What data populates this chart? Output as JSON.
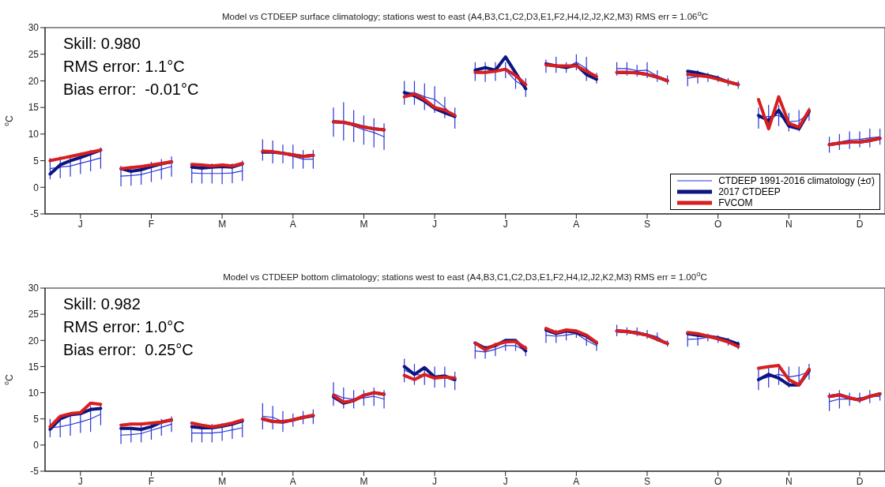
{
  "chart_data": [
    {
      "type": "line",
      "title": "Model vs CTDEEP surface climatology; stations west to east (A4,B3,C1,C2,D3,E1,F2,H4,I2,J2,K2,M3) RMS err = 1.06$^{o}$C",
      "ylabel": "$^{o}$C",
      "annotations": [
        "Skill: 0.980",
        "RMS error: 1.1°C",
        "Bias error:  -0.01°C"
      ],
      "ylim": [
        -5,
        30
      ],
      "yticks": [
        -5,
        0,
        5,
        10,
        15,
        20,
        25,
        30
      ],
      "marker": "none",
      "legend": "bottom right",
      "categories": [
        null,
        null,
        null,
        "J",
        null,
        null,
        null,
        null,
        null,
        null,
        "F",
        null,
        null,
        null,
        null,
        null,
        null,
        "M",
        null,
        null,
        null,
        null,
        null,
        null,
        "A",
        null,
        null,
        null,
        null,
        null,
        null,
        "M",
        null,
        null,
        null,
        null,
        null,
        null,
        "J",
        null,
        null,
        null,
        null,
        null,
        null,
        "J",
        null,
        null,
        null,
        null,
        null,
        null,
        "A",
        null,
        null,
        null,
        null,
        null,
        null,
        "S",
        null,
        null,
        null,
        null,
        null,
        null,
        "O",
        null,
        null,
        null,
        null,
        null,
        null,
        "N",
        null,
        null,
        null,
        null,
        null,
        null,
        "D",
        null,
        null
      ],
      "series": [
        {
          "name": "CTDEEP 1991-2016 climatology (±σ)",
          "color": "#2a35d6",
          "values": [
            3.5,
            3.8,
            4.0,
            4.5,
            5.0,
            5.5,
            null,
            2.1,
            2.2,
            2.4,
            2.9,
            3.4,
            3.9,
            null,
            2.7,
            2.6,
            2.6,
            2.6,
            2.7,
            3.1,
            null,
            7.0,
            6.7,
            6.3,
            5.8,
            5.3,
            5.3,
            null,
            12.3,
            12.4,
            11.5,
            10.8,
            10.3,
            9.5,
            null,
            17.8,
            17.8,
            17.0,
            16.5,
            15.0,
            13.0,
            null,
            21.8,
            21.7,
            21.8,
            22.0,
            20.0,
            18.8,
            null,
            22.8,
            23.0,
            22.5,
            23.5,
            22.3,
            20.5,
            null,
            22.3,
            22.3,
            21.9,
            22.0,
            20.9,
            20.2,
            null,
            20.5,
            20.8,
            20.7,
            20.4,
            19.8,
            19.3,
            null,
            13.0,
            13.3,
            13.5,
            12.3,
            12.5,
            13.8,
            null,
            8.0,
            8.5,
            8.9,
            9.0,
            9.3,
            9.5
          ],
          "errors": [
            [
              1.5,
              5.5
            ],
            [
              1.7,
              5.8
            ],
            [
              2.0,
              6.0
            ],
            [
              2.5,
              6.5
            ],
            [
              3.0,
              7.0
            ],
            [
              3.5,
              7.5
            ],
            null,
            [
              0.2,
              4.0
            ],
            [
              0.3,
              4.0
            ],
            [
              0.5,
              4.2
            ],
            [
              1.0,
              4.8
            ],
            [
              1.5,
              5.3
            ],
            [
              2.0,
              5.8
            ],
            null,
            [
              0.8,
              4.5
            ],
            [
              0.7,
              4.5
            ],
            [
              0.7,
              4.5
            ],
            [
              0.6,
              4.5
            ],
            [
              0.8,
              4.5
            ],
            [
              1.2,
              5.0
            ],
            null,
            [
              5.0,
              9.0
            ],
            [
              4.5,
              8.8
            ],
            [
              4.5,
              8.0
            ],
            [
              3.5,
              8.0
            ],
            [
              3.5,
              7.0
            ],
            [
              3.5,
              7.0
            ],
            null,
            [
              9.5,
              15.0
            ],
            [
              8.8,
              16.0
            ],
            [
              8.5,
              14.5
            ],
            [
              8.0,
              13.5
            ],
            [
              7.5,
              13.0
            ],
            [
              7.0,
              12.0
            ],
            null,
            [
              15.5,
              20.0
            ],
            [
              15.5,
              20.0
            ],
            [
              14.5,
              19.5
            ],
            [
              14.0,
              19.0
            ],
            [
              13.0,
              17.0
            ],
            [
              11.0,
              15.0
            ],
            null,
            [
              20.0,
              23.5
            ],
            [
              19.8,
              23.5
            ],
            [
              20.0,
              23.5
            ],
            [
              20.5,
              23.5
            ],
            [
              18.5,
              21.5
            ],
            [
              17.0,
              20.5
            ],
            null,
            [
              21.5,
              24.0
            ],
            [
              21.5,
              24.5
            ],
            [
              21.5,
              23.5
            ],
            [
              22.0,
              25.0
            ],
            [
              20.0,
              24.5
            ],
            [
              19.5,
              21.5
            ],
            null,
            [
              21.0,
              23.5
            ],
            [
              21.0,
              23.5
            ],
            [
              20.8,
              23.0
            ],
            [
              20.5,
              23.5
            ],
            [
              19.8,
              22.0
            ],
            [
              19.3,
              21.0
            ],
            null,
            [
              19.0,
              22.0
            ],
            [
              19.5,
              22.0
            ],
            [
              19.8,
              21.5
            ],
            [
              19.8,
              21.0
            ],
            [
              19.0,
              20.5
            ],
            [
              18.5,
              20.0
            ],
            null,
            [
              11.0,
              15.0
            ],
            [
              11.0,
              15.5
            ],
            [
              11.5,
              15.5
            ],
            [
              10.5,
              14.0
            ],
            [
              10.5,
              14.5
            ],
            [
              12.5,
              15.0
            ],
            null,
            [
              6.5,
              9.5
            ],
            [
              7.0,
              10.0
            ],
            [
              7.2,
              10.5
            ],
            [
              7.5,
              10.5
            ],
            [
              7.5,
              11.0
            ],
            [
              8.0,
              11.0
            ]
          ]
        },
        {
          "name": "2017 CTDEEP",
          "color": "#0c1580",
          "values": [
            2.5,
            4.2,
            5.0,
            5.6,
            6.3,
            7.0,
            null,
            3.5,
            3.0,
            3.3,
            3.9,
            4.4,
            4.8,
            null,
            3.8,
            3.6,
            3.8,
            3.9,
            3.8,
            4.4,
            null,
            6.6,
            6.6,
            6.4,
            6.1,
            5.8,
            6.0,
            null,
            12.3,
            12.2,
            11.8,
            11.3,
            11.0,
            10.8,
            null,
            17.8,
            17.2,
            16.2,
            14.8,
            14.0,
            13.3,
            null,
            22.0,
            22.5,
            22.0,
            24.5,
            21.5,
            18.5,
            null,
            23.2,
            22.8,
            22.5,
            23.0,
            21.2,
            20.3,
            null,
            21.6,
            21.6,
            21.5,
            21.2,
            20.7,
            20.0,
            null,
            21.8,
            21.5,
            21.0,
            20.5,
            19.8,
            19.3,
            null,
            13.5,
            12.5,
            14.5,
            11.5,
            11.0,
            14.2,
            null,
            8.0,
            8.3,
            8.5,
            8.5,
            8.8,
            9.2
          ]
        },
        {
          "name": "FVCOM",
          "color": "#d81e1e",
          "values": [
            5.0,
            5.4,
            5.8,
            6.2,
            6.6,
            7.0,
            null,
            3.5,
            3.7,
            3.9,
            4.2,
            4.5,
            4.8,
            null,
            4.3,
            4.2,
            4.0,
            4.2,
            4.0,
            4.5,
            null,
            6.8,
            6.7,
            6.4,
            6.1,
            5.8,
            6.0,
            null,
            12.3,
            12.2,
            11.8,
            11.3,
            11.0,
            10.8,
            null,
            17.0,
            17.5,
            16.5,
            15.0,
            14.5,
            13.5,
            null,
            21.6,
            21.6,
            21.8,
            22.2,
            21.0,
            19.3,
            null,
            23.0,
            22.8,
            22.8,
            22.8,
            21.8,
            20.8,
            null,
            21.6,
            21.6,
            21.5,
            21.2,
            20.7,
            20.0,
            null,
            21.2,
            21.0,
            20.8,
            20.3,
            19.8,
            19.3,
            null,
            16.5,
            11.0,
            17.0,
            12.0,
            11.3,
            14.5,
            null,
            8.0,
            8.3,
            8.5,
            8.5,
            8.8,
            9.2
          ]
        }
      ]
    },
    {
      "type": "line",
      "title": "Model vs CTDEEP bottom climatology; stations west to east (A4,B3,C1,C2,D3,E1,F2,H4,I2,J2,K2,M3) RMS err = 1.00$^{o}$C",
      "ylabel": "$^{o}$C",
      "annotations": [
        "Skill: 0.982",
        "RMS error: 1.0°C",
        "Bias error:  0.25°C"
      ],
      "ylim": [
        -5,
        30
      ],
      "yticks": [
        -5,
        0,
        5,
        10,
        15,
        20,
        25,
        30
      ],
      "marker": "none",
      "categories": [
        null,
        null,
        null,
        "J",
        null,
        null,
        null,
        null,
        null,
        null,
        "F",
        null,
        null,
        null,
        null,
        null,
        null,
        "M",
        null,
        null,
        null,
        null,
        null,
        null,
        "A",
        null,
        null,
        null,
        null,
        null,
        null,
        "M",
        null,
        null,
        null,
        null,
        null,
        null,
        "J",
        null,
        null,
        null,
        null,
        null,
        null,
        "J",
        null,
        null,
        null,
        null,
        null,
        null,
        "A",
        null,
        null,
        null,
        null,
        null,
        null,
        "S",
        null,
        null,
        null,
        null,
        null,
        null,
        "O",
        null,
        null,
        null,
        null,
        null,
        null,
        "N",
        null,
        null,
        null,
        null,
        null,
        null,
        "D",
        null,
        null
      ],
      "series": [
        {
          "color": "#2a35d6",
          "values": [
            3.3,
            3.5,
            3.9,
            4.4,
            5.0,
            5.9,
            null,
            1.9,
            2.0,
            2.2,
            2.8,
            3.4,
            4.0,
            null,
            2.3,
            2.3,
            2.3,
            2.5,
            2.9,
            3.3,
            null,
            5.5,
            5.3,
            4.5,
            4.8,
            5.3,
            5.4,
            null,
            9.8,
            9.0,
            8.8,
            9.0,
            9.3,
            8.8,
            null,
            14.3,
            13.5,
            13.3,
            13.0,
            13.0,
            12.3,
            null,
            18.0,
            17.8,
            18.3,
            19.0,
            19.0,
            18.0,
            null,
            21.0,
            20.8,
            21.0,
            21.3,
            20.0,
            19.0,
            null,
            21.9,
            21.8,
            21.7,
            21.2,
            20.7,
            19.4,
            null,
            20.2,
            20.3,
            20.6,
            20.3,
            19.8,
            19.1,
            null,
            12.5,
            13.0,
            13.5,
            13.0,
            13.3,
            14.0,
            null,
            8.3,
            8.8,
            8.8,
            9.0,
            9.3,
            9.3
          ],
          "errors": [
            [
              1.5,
              5.0
            ],
            [
              1.5,
              5.5
            ],
            [
              1.8,
              6.0
            ],
            [
              2.3,
              6.5
            ],
            [
              2.5,
              7.5
            ],
            [
              3.8,
              8.0
            ],
            null,
            [
              0.2,
              3.5
            ],
            [
              0.5,
              3.5
            ],
            [
              0.5,
              3.8
            ],
            [
              1.0,
              4.5
            ],
            [
              1.8,
              5.0
            ],
            [
              2.5,
              5.5
            ],
            null,
            [
              0.5,
              4.0
            ],
            [
              0.5,
              4.0
            ],
            [
              0.5,
              4.0
            ],
            [
              0.8,
              4.2
            ],
            [
              1.2,
              4.5
            ],
            [
              1.5,
              5.0
            ],
            null,
            [
              3.0,
              8.0
            ],
            [
              3.0,
              7.5
            ],
            [
              2.5,
              6.5
            ],
            [
              3.5,
              6.0
            ],
            [
              4.0,
              6.5
            ],
            [
              4.0,
              6.8
            ],
            null,
            [
              7.5,
              12.0
            ],
            [
              7.0,
              11.0
            ],
            [
              7.0,
              10.5
            ],
            [
              7.5,
              10.5
            ],
            [
              7.5,
              11.0
            ],
            [
              7.0,
              10.5
            ],
            null,
            [
              12.0,
              16.5
            ],
            [
              11.5,
              15.5
            ],
            [
              11.5,
              15.0
            ],
            [
              11.0,
              15.0
            ],
            [
              11.0,
              15.0
            ],
            [
              10.5,
              14.0
            ],
            null,
            [
              16.5,
              19.5
            ],
            [
              16.5,
              19.0
            ],
            [
              17.0,
              19.5
            ],
            [
              18.0,
              20.0
            ],
            [
              18.0,
              20.0
            ],
            [
              17.0,
              19.0
            ],
            null,
            [
              19.5,
              22.5
            ],
            [
              19.5,
              22.0
            ],
            [
              20.0,
              22.0
            ],
            [
              20.5,
              22.0
            ],
            [
              19.0,
              21.0
            ],
            [
              18.0,
              20.0
            ],
            null,
            [
              20.8,
              23.0
            ],
            [
              21.0,
              22.5
            ],
            [
              20.8,
              22.5
            ],
            [
              20.3,
              22.0
            ],
            [
              19.8,
              21.5
            ],
            [
              18.8,
              20.0
            ],
            null,
            [
              18.8,
              21.5
            ],
            [
              19.0,
              21.5
            ],
            [
              19.8,
              21.3
            ],
            [
              19.5,
              21.0
            ],
            [
              19.0,
              20.5
            ],
            [
              18.3,
              19.8
            ],
            null,
            [
              10.5,
              14.5
            ],
            [
              11.0,
              15.0
            ],
            [
              11.5,
              15.5
            ],
            [
              11.0,
              15.0
            ],
            [
              11.5,
              15.0
            ],
            [
              12.5,
              15.5
            ],
            null,
            [
              6.5,
              10.0
            ],
            [
              7.0,
              10.5
            ],
            [
              7.5,
              10.0
            ],
            [
              8.0,
              10.0
            ],
            [
              8.0,
              10.5
            ],
            [
              8.5,
              10.0
            ]
          ]
        },
        {
          "color": "#0c1580",
          "values": [
            3.0,
            5.0,
            5.8,
            6.0,
            6.8,
            7.0,
            null,
            3.2,
            3.2,
            3.0,
            3.5,
            4.4,
            4.8,
            null,
            3.5,
            3.3,
            3.3,
            3.6,
            4.0,
            4.6,
            null,
            5.0,
            4.5,
            4.4,
            4.8,
            5.3,
            5.6,
            null,
            9.2,
            8.0,
            8.5,
            9.5,
            10.0,
            9.7,
            null,
            15.0,
            13.5,
            14.8,
            13.0,
            13.2,
            12.5,
            null,
            19.5,
            18.5,
            19.0,
            20.0,
            20.0,
            18.0,
            null,
            22.0,
            21.3,
            21.8,
            21.5,
            20.8,
            19.5,
            null,
            21.8,
            21.7,
            21.4,
            21.0,
            20.2,
            19.4,
            null,
            21.3,
            21.0,
            20.8,
            20.5,
            20.0,
            19.3,
            null,
            12.5,
            13.5,
            12.8,
            11.5,
            11.5,
            14.2,
            null,
            9.3,
            9.6,
            9.0,
            8.6,
            9.3,
            9.8
          ]
        },
        {
          "color": "#d81e1e",
          "values": [
            3.5,
            5.5,
            6.0,
            6.2,
            8.0,
            7.8,
            null,
            3.8,
            4.0,
            4.0,
            4.2,
            4.4,
            4.8,
            null,
            4.2,
            3.8,
            3.5,
            3.8,
            4.2,
            4.8,
            null,
            5.0,
            4.5,
            4.5,
            4.8,
            5.3,
            5.7,
            null,
            9.5,
            8.2,
            8.5,
            9.5,
            10.0,
            9.7,
            null,
            13.3,
            12.5,
            13.5,
            12.8,
            13.0,
            12.8,
            null,
            19.5,
            18.2,
            19.2,
            19.7,
            19.8,
            18.5,
            null,
            22.3,
            21.5,
            22.0,
            21.8,
            21.0,
            19.6,
            null,
            21.8,
            21.7,
            21.4,
            21.0,
            20.2,
            19.4,
            null,
            21.5,
            21.3,
            20.8,
            20.3,
            19.7,
            18.8,
            null,
            14.7,
            15.0,
            15.2,
            12.5,
            11.5,
            14.5,
            null,
            9.3,
            9.6,
            9.0,
            8.6,
            9.3,
            9.8
          ]
        }
      ]
    }
  ]
}
